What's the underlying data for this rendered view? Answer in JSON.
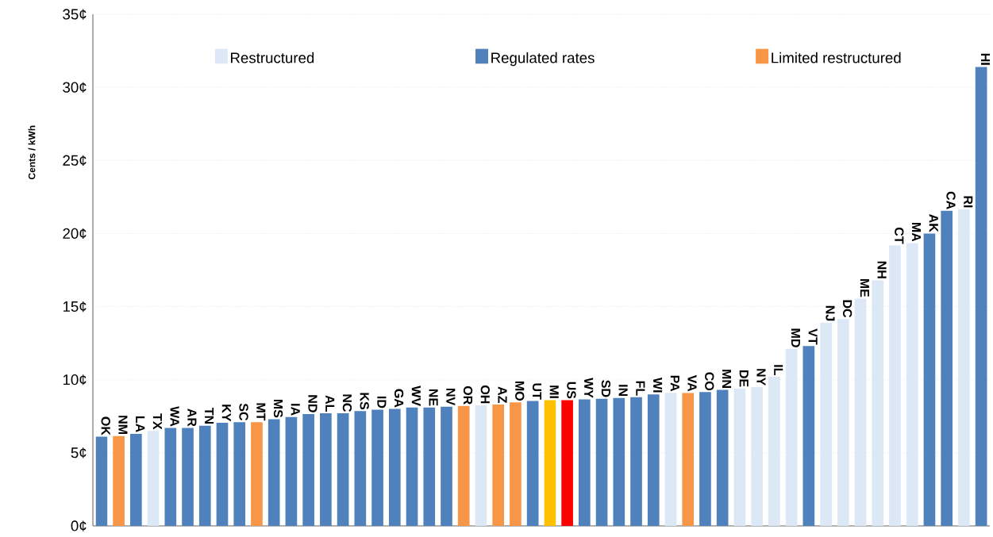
{
  "chart_data": {
    "type": "bar",
    "ylabel": "Cents / kWh",
    "categories": [
      "OK",
      "NM",
      "LA",
      "TX",
      "WA",
      "AR",
      "TN",
      "KY",
      "SC",
      "MT",
      "MS",
      "IA",
      "ND",
      "AL",
      "NC",
      "KS",
      "ID",
      "GA",
      "WV",
      "NE",
      "NV",
      "OR",
      "OH",
      "AZ",
      "MO",
      "UT",
      "MI",
      "US",
      "WY",
      "SD",
      "IN",
      "FL",
      "WI",
      "PA",
      "VA",
      "CO",
      "MN",
      "DE",
      "NY",
      "IL",
      "MD",
      "VT",
      "NJ",
      "DC",
      "ME",
      "NH",
      "CT",
      "MA",
      "AK",
      "CA",
      "RI",
      "HI"
    ],
    "series": [
      {
        "name": "Restructured",
        "color": "#dce8f5",
        "values": [
          null,
          null,
          null,
          6.5,
          null,
          null,
          null,
          null,
          null,
          null,
          null,
          null,
          null,
          null,
          null,
          null,
          null,
          null,
          null,
          null,
          null,
          null,
          8.25,
          null,
          null,
          null,
          null,
          null,
          null,
          null,
          null,
          null,
          null,
          9.1,
          null,
          null,
          null,
          9.4,
          9.5,
          10.2,
          12.1,
          null,
          13.9,
          14.15,
          15.55,
          16.8,
          19.2,
          19.35,
          null,
          null,
          21.65,
          null
        ]
      },
      {
        "name": "Regulated rates",
        "color": "#4f81bd",
        "values": [
          6.1,
          null,
          6.3,
          null,
          6.7,
          6.7,
          6.85,
          7.05,
          7.1,
          null,
          7.3,
          7.45,
          7.65,
          7.7,
          7.7,
          7.85,
          7.95,
          8.0,
          8.1,
          8.1,
          8.15,
          null,
          null,
          null,
          null,
          8.55,
          null,
          null,
          8.65,
          8.7,
          8.75,
          8.8,
          9.0,
          null,
          null,
          9.15,
          9.3,
          null,
          null,
          null,
          null,
          12.3,
          null,
          null,
          null,
          null,
          null,
          null,
          20.0,
          21.55,
          null,
          31.4
        ]
      },
      {
        "name": "Limited restructured",
        "color": "#f79646",
        "values": [
          null,
          6.15,
          null,
          null,
          null,
          null,
          null,
          null,
          null,
          7.1,
          null,
          null,
          null,
          null,
          null,
          null,
          null,
          null,
          null,
          null,
          null,
          8.2,
          null,
          8.3,
          8.45,
          null,
          null,
          null,
          null,
          null,
          null,
          null,
          null,
          null,
          9.1,
          null,
          null,
          null,
          null,
          null,
          null,
          null,
          null,
          null,
          null,
          null,
          null,
          null,
          null,
          null,
          null,
          null
        ]
      },
      {
        "color": "#ffc000",
        "values": [
          null,
          null,
          null,
          null,
          null,
          null,
          null,
          null,
          null,
          null,
          null,
          null,
          null,
          null,
          null,
          null,
          null,
          null,
          null,
          null,
          null,
          null,
          null,
          null,
          null,
          null,
          8.6,
          null,
          null,
          null,
          null,
          null,
          null,
          null,
          null,
          null,
          null,
          null,
          null,
          null,
          null,
          null,
          null,
          null,
          null,
          null,
          null,
          null,
          null,
          null,
          null,
          null
        ]
      },
      {
        "color": "#ff0000",
        "values": [
          null,
          null,
          null,
          null,
          null,
          null,
          null,
          null,
          null,
          null,
          null,
          null,
          null,
          null,
          null,
          null,
          null,
          null,
          null,
          null,
          null,
          null,
          null,
          null,
          null,
          null,
          null,
          8.6,
          null,
          null,
          null,
          null,
          null,
          null,
          null,
          null,
          null,
          null,
          null,
          null,
          null,
          null,
          null,
          null,
          null,
          null,
          null,
          null,
          null,
          null,
          null,
          null
        ]
      }
    ],
    "ylim": [
      0,
      35
    ],
    "yticks": [
      {
        "value": 0,
        "label": "0¢"
      },
      {
        "value": 5,
        "label": "5¢"
      },
      {
        "value": 10,
        "label": "10¢"
      },
      {
        "value": 15,
        "label": "15¢"
      },
      {
        "value": 20,
        "label": "20¢"
      },
      {
        "value": 25,
        "label": "25¢"
      },
      {
        "value": 30,
        "label": "30¢"
      },
      {
        "value": 35,
        "label": "35¢"
      }
    ],
    "grid": "y",
    "legend": "top"
  }
}
